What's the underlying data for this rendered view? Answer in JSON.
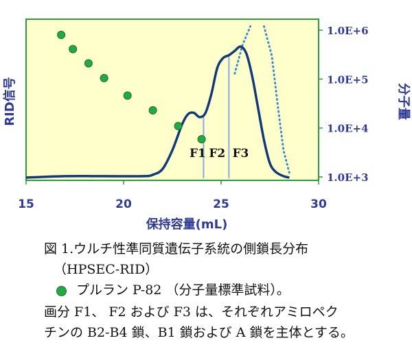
{
  "colors": {
    "plot_background": "#ffffcc",
    "plot_frame": "#2c9a3e",
    "axis_text": "#2f3a94",
    "rid_line": "#123a7a",
    "mw_line": "#3a8ccc",
    "marker": "#22aa44",
    "fraction_line": "#88aadd"
  },
  "chart_data": {
    "type": "line",
    "xlabel": "保持容量(mL)",
    "ylabel_left": "RID信号",
    "ylabel_right": "分子量",
    "xlim": [
      15,
      30
    ],
    "x_ticks": [
      15,
      20,
      25,
      30
    ],
    "x_tick_labels": [
      "15",
      "20",
      "25",
      "30"
    ],
    "y_right_scale": "log",
    "y_right_lim": [
      1000,
      1000000
    ],
    "y_right_ticks": [
      1000,
      10000,
      100000,
      1000000
    ],
    "y_right_tick_labels": [
      "1.0E+3",
      "1.0E+4",
      "1.0E+5",
      "1.0E+6"
    ],
    "rid_signal": {
      "x": [
        15,
        17,
        19,
        21,
        21.5,
        22,
        22.5,
        23,
        23.3,
        23.6,
        23.9,
        24.2,
        24.5,
        24.8,
        25.1,
        25.4,
        25.7,
        26,
        26.3,
        26.6,
        26.9,
        27.2,
        27.5,
        27.8,
        28.2,
        28.5
      ],
      "y": [
        0,
        0.01,
        0.01,
        0.01,
        0.02,
        0.06,
        0.19,
        0.37,
        0.44,
        0.45,
        0.42,
        0.45,
        0.58,
        0.76,
        0.83,
        0.85,
        0.88,
        0.91,
        0.86,
        0.7,
        0.48,
        0.26,
        0.1,
        0.04,
        0.01,
        0.0
      ]
    },
    "series": [
      {
        "name": "プルラン P-82",
        "type": "scatter",
        "x": [
          16.8,
          17.4,
          18.2,
          19.0,
          20.2,
          21.5,
          22.8,
          24.0
        ],
        "y": [
          800000,
          410000,
          210000,
          105000,
          46000,
          23000,
          11000,
          5900
        ]
      },
      {
        "type": "line",
        "style": "dotted",
        "segments": [
          {
            "x": [
              25.7,
              26.1,
              26.5
            ],
            "y": [
              130000,
              500000,
              1200000
            ]
          },
          {
            "x": [
              27.2,
              27.6,
              27.9,
              28.2,
              28.5
            ],
            "y": [
              1200000,
              300000,
              30000,
              3500,
              1200
            ]
          }
        ]
      }
    ],
    "annotations": [
      {
        "text": "F1",
        "x": 23.8
      },
      {
        "text": "F2",
        "x": 24.8
      },
      {
        "text": "F3",
        "x": 26.0
      }
    ],
    "fraction_boundaries_x": [
      24.1,
      25.4
    ]
  },
  "caption": {
    "line1": "図 1.ウルチ性準同質遺伝子系統の側鎖長分布",
    "line2": "（HPSEC-RID）",
    "legend": "プルラン P-82 （分子量標準試料）。",
    "line4": "画分 F1、 F2 および F3 は、それぞれアミロペク",
    "line5": "チンの B2-B4 鎖、B1 鎖および A 鎖を主体とする。"
  }
}
